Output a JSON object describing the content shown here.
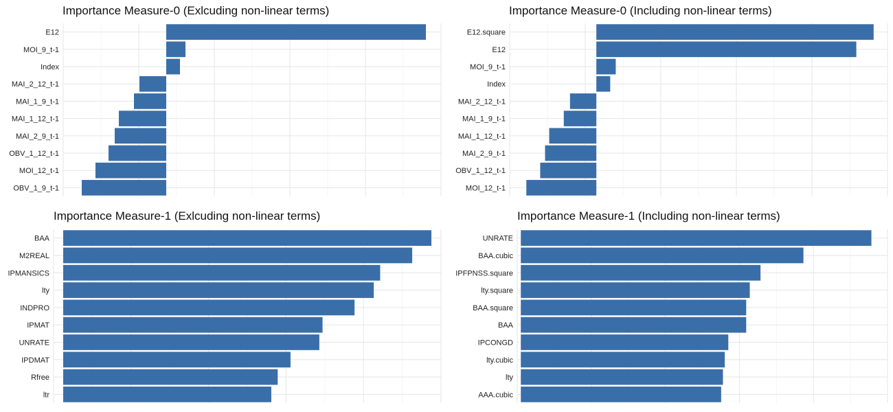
{
  "colors": {
    "bar": "#3a6ea8",
    "grid_major": "#e6e6e6",
    "grid_minor": "#f2f2f2",
    "background": "#ffffff"
  },
  "chart_data": [
    {
      "type": "bar",
      "orientation": "horizontal",
      "title": "Importance Measure-0 (Exlcuding non-linear terms)",
      "xlabel": "",
      "ylabel": "",
      "categories": [
        "E12",
        "MOI_9_t-1",
        "Index",
        "MAI_2_12_t-1",
        "MAI_1_9_t-1",
        "MAI_1_12_t-1",
        "MAI_2_9_t-1",
        "OBV_1_12_t-1",
        "MOI_12_t-1",
        "OBV_1_9_t-1"
      ],
      "values": [
        0.378,
        0.028,
        0.02,
        -0.039,
        -0.047,
        -0.069,
        -0.075,
        -0.084,
        -0.103,
        -0.123
      ],
      "xlim": [
        -0.15,
        0.4
      ],
      "grid": true
    },
    {
      "type": "bar",
      "orientation": "horizontal",
      "title": "Importance Measure-0 (Including non-linear terms)",
      "xlabel": "",
      "ylabel": "",
      "categories": [
        "E12.square",
        "E12",
        "MOI_9_t-1",
        "Index",
        "MAI_2_12_t-1",
        "MAI_1_9_t-1",
        "MAI_1_12_t-1",
        "MAI_2_9_t-1",
        "OBV_1_12_t-1",
        "MOI_12_t-1"
      ],
      "values": [
        0.4,
        0.375,
        0.028,
        0.02,
        -0.038,
        -0.047,
        -0.068,
        -0.074,
        -0.081,
        -0.101
      ],
      "xlim": [
        -0.125,
        0.42
      ],
      "grid": true
    },
    {
      "type": "bar",
      "orientation": "horizontal",
      "title": "Importance Measure-1 (Exlcuding non-linear terms)",
      "xlabel": "",
      "ylabel": "",
      "categories": [
        "BAA",
        "M2REAL",
        "IPMANSICS",
        "lty",
        "INDPRO",
        "IPMAT",
        "UNRATE",
        "IPDMAT",
        "Rfree",
        "ltr"
      ],
      "values": [
        0.0115,
        0.0109,
        0.0099,
        0.0097,
        0.0091,
        0.0081,
        0.008,
        0.0071,
        0.0067,
        0.0065
      ],
      "xlim": [
        -0.0003,
        0.0118
      ],
      "grid": true
    },
    {
      "type": "bar",
      "orientation": "horizontal",
      "title": "Importance Measure-1 (Including non-linear terms)",
      "xlabel": "",
      "ylabel": "",
      "categories": [
        "UNRATE",
        "BAA.cubic",
        "IPFPNSS.square",
        "lty.square",
        "BAA.square",
        "BAA",
        "IPCONGD",
        "lty.cubic",
        "lty",
        "AAA.cubic"
      ],
      "values": [
        0.0196,
        0.0158,
        0.0134,
        0.0128,
        0.0126,
        0.0126,
        0.0116,
        0.0114,
        0.0113,
        0.0112
      ],
      "xlim": [
        -0.0002,
        0.0205
      ],
      "grid": true
    }
  ]
}
